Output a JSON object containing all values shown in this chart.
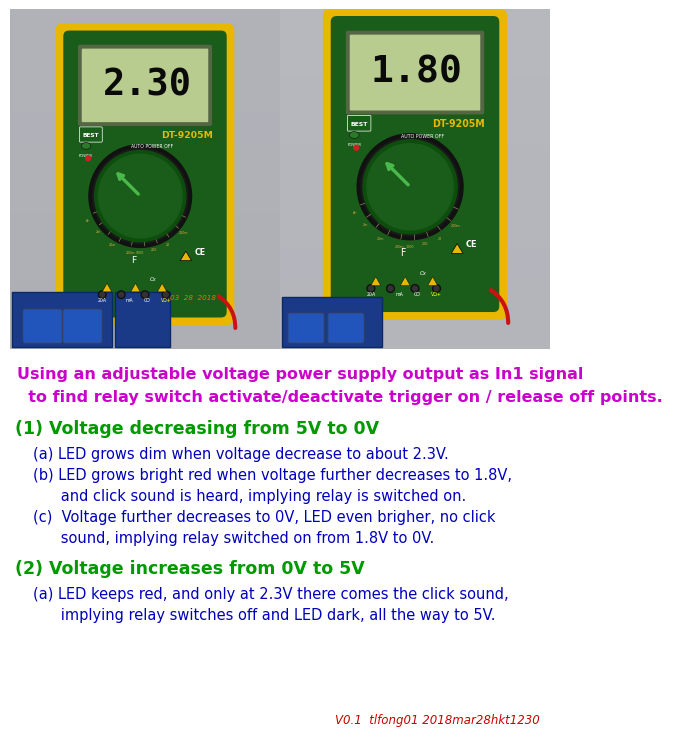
{
  "image_bg": "#ffffff",
  "photo_left_bg": "#a8a8a8",
  "photo_right_bg": "#b0b0b0",
  "wall_color": "#c0c0c8",
  "meter_body_green": "#1a5c1a",
  "meter_body_dark": "#0f3d0f",
  "meter_yellow": "#e8b800",
  "meter_yellow_dark": "#c89000",
  "display_bg": "#b8cc90",
  "display_border": "#6a7a50",
  "display_text": "#0a0a0a",
  "dial_green": "#1a5c1a",
  "dial_dark_ring": "#1a1a1a",
  "dial_pointer": "#3a8a3a",
  "board_blue": "#2244aa",
  "title_color": "#cc00cc",
  "section1_color": "#009900",
  "section2_color": "#009900",
  "body_color": "#0000bb",
  "footer_color": "#cc0000",
  "title_lines": [
    "Using an adjustable voltage power supply output as In1 signal",
    "  to find relay switch activate/deactivate trigger on / release off points."
  ],
  "section1_header": "(1) Voltage decreasing from 5V to 0V",
  "items1": [
    "(a) LED grows dim when voltage decrease to about 2.3V.",
    "(b) LED grows bright red when voltage further decreases to 1.8V,",
    "      and click sound is heard, implying relay is switched on.",
    "(c)  Voltage further decreases to 0V, LED even brigher, no click",
    "      sound, implying relay switched on from 1.8V to 0V."
  ],
  "section2_header": "(2) Voltage increases from 0V to 5V",
  "items2": [
    "(a) LED keeps red, and only at 2.3V there comes the click sound,",
    "      implying relay switches off and LED dark, all the way to 5V."
  ],
  "footer_text": "V0.1  tlfong01 2018mar28hkt1230",
  "val_left": "2.30",
  "val_right": "1.80",
  "date_text": "03  28  2018"
}
